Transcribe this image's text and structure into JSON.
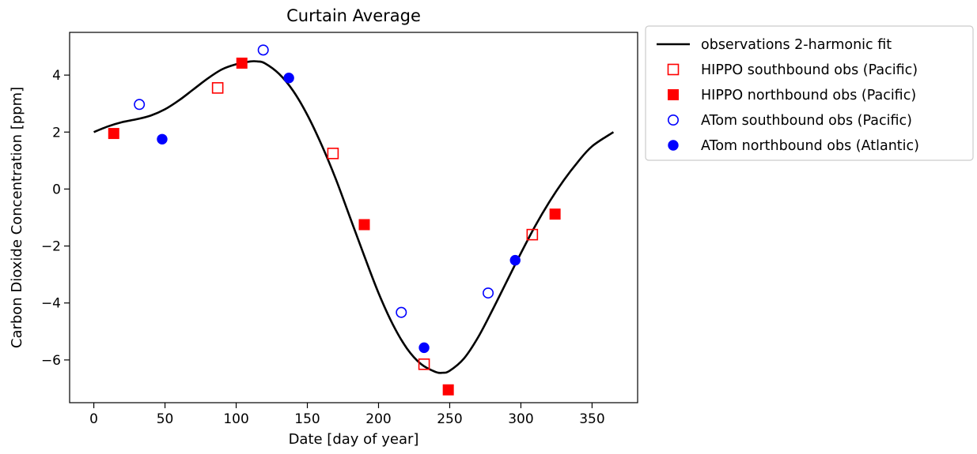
{
  "chart_data": {
    "type": "scatter",
    "title": "Curtain Average",
    "xlabel": "Date [day of year]",
    "ylabel": "Carbon Dioxide Concentration [ppm]",
    "xlim": [
      -17,
      382
    ],
    "ylim": [
      -7.5,
      5.5
    ],
    "xticks": [
      0,
      50,
      100,
      150,
      200,
      250,
      300,
      350
    ],
    "yticks": [
      -6,
      -4,
      -2,
      0,
      2,
      4
    ],
    "grid": false,
    "legend_position": "outside-right",
    "colors": {
      "red": "#ff0000",
      "blue": "#0000ff",
      "line": "#000000"
    },
    "fit": {
      "name": "observations 2-harmonic fit",
      "x": [
        0,
        10,
        20,
        30,
        40,
        50,
        60,
        70,
        80,
        90,
        100,
        110,
        115,
        120,
        130,
        140,
        150,
        160,
        170,
        180,
        190,
        200,
        210,
        220,
        230,
        240,
        245,
        250,
        260,
        270,
        280,
        290,
        300,
        310,
        320,
        330,
        340,
        350,
        365
      ],
      "y": [
        2.0,
        2.2,
        2.35,
        2.45,
        2.58,
        2.8,
        3.12,
        3.5,
        3.88,
        4.2,
        4.38,
        4.48,
        4.48,
        4.42,
        4.05,
        3.45,
        2.6,
        1.55,
        0.35,
        -1.0,
        -2.35,
        -3.65,
        -4.75,
        -5.6,
        -6.15,
        -6.42,
        -6.45,
        -6.38,
        -5.95,
        -5.2,
        -4.25,
        -3.25,
        -2.25,
        -1.3,
        -0.45,
        0.3,
        0.95,
        1.5,
        2.0
      ]
    },
    "series": [
      {
        "name": "HIPPO southbound obs (Pacific)",
        "marker": "open-square",
        "color": "#ff0000",
        "points": [
          [
            87,
            3.55
          ],
          [
            168,
            1.25
          ],
          [
            232,
            -6.15
          ],
          [
            308,
            -1.6
          ]
        ]
      },
      {
        "name": "HIPPO northbound obs (Pacific)",
        "marker": "filled-square",
        "color": "#ff0000",
        "points": [
          [
            14,
            1.95
          ],
          [
            104,
            4.42
          ],
          [
            190,
            -1.25
          ],
          [
            249,
            -7.05
          ],
          [
            324,
            -0.88
          ]
        ]
      },
      {
        "name": "ATom southbound obs (Pacific)",
        "marker": "open-circle",
        "color": "#0000ff",
        "points": [
          [
            32,
            2.97
          ],
          [
            119,
            4.88
          ],
          [
            216,
            -4.33
          ],
          [
            277,
            -3.65
          ]
        ]
      },
      {
        "name": "ATom northbound obs (Atlantic)",
        "marker": "filled-circle",
        "color": "#0000ff",
        "points": [
          [
            48,
            1.75
          ],
          [
            137,
            3.9
          ],
          [
            232,
            -5.57
          ],
          [
            296,
            -2.5
          ]
        ]
      }
    ]
  }
}
